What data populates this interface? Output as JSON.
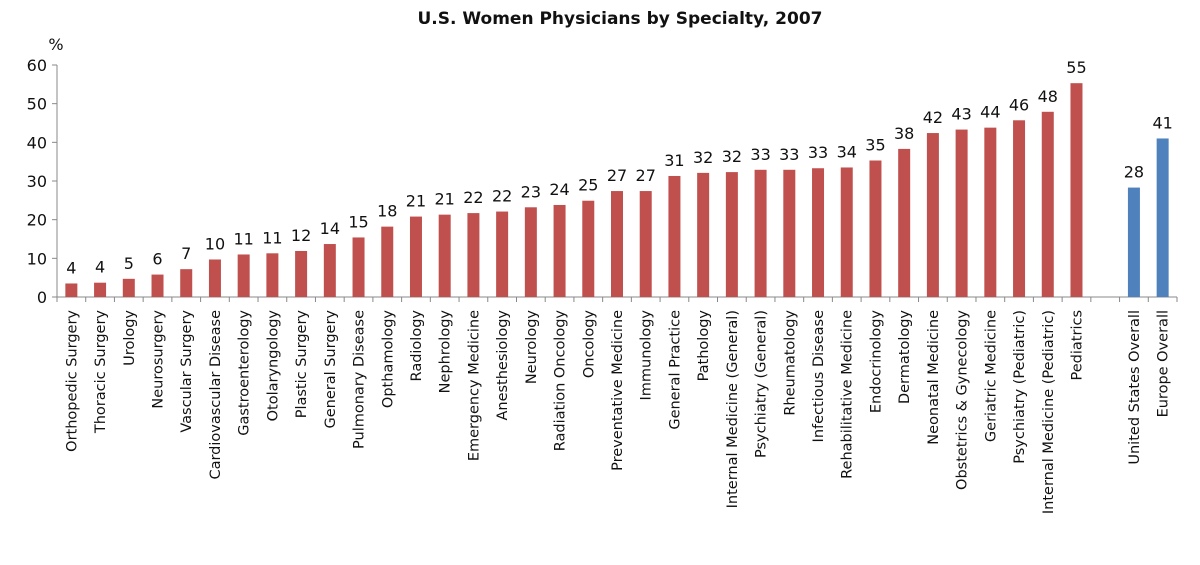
{
  "chart_data": {
    "type": "bar",
    "title": "U.S. Women Physicians by Specialty, 2007",
    "ylabel": "%",
    "xlabel": "",
    "ylim": [
      0,
      60
    ],
    "yticks": [
      0,
      10,
      20,
      30,
      40,
      50,
      60
    ],
    "grid": false,
    "legend": "none",
    "colors": {
      "specialty": "#C0504D",
      "overall": "#4F81BD"
    },
    "categories": [
      "Orthopedic Surgery",
      "Thoracic Surgery",
      "Urology",
      "Neurosurgery",
      "Vascular Surgery",
      "Cardiovascular Disease",
      "Gastroenterology",
      "Otolaryngology",
      "Plastic Surgery",
      "General Surgery",
      "Pulmonary Disease",
      "Opthamology",
      "Radiology",
      "Nephrology",
      "Emergency Medicine",
      "Anesthesiology",
      "Neurology",
      "Radiation Oncology",
      "Oncology",
      "Preventative Medicine",
      "Immunology",
      "General Practice",
      "Pathology",
      "Internal Medicine (General)",
      "Psychiatry (General)",
      "Rheumatology",
      "Infectious Disease",
      "Rehabilitative Medicine",
      "Endocrinology",
      "Dermatology",
      "Neonatal Medicine",
      "Obstetrics & Gynecology",
      "Geriatric Medicine",
      "Psychiatry (Pediatric)",
      "Internal Medicine (Pediatric)",
      "Pediatrics",
      "",
      "United States Overall",
      "Europe Overall"
    ],
    "values": [
      3.5,
      3.7,
      4.7,
      5.8,
      7.2,
      9.7,
      11.0,
      11.3,
      11.9,
      13.7,
      15.4,
      18.2,
      20.8,
      21.3,
      21.7,
      22.1,
      23.2,
      23.8,
      24.9,
      27.4,
      27.4,
      31.3,
      32.1,
      32.3,
      32.9,
      32.9,
      33.3,
      33.5,
      35.3,
      38.3,
      42.4,
      43.3,
      43.8,
      45.7,
      47.9,
      55.3,
      null,
      28.3,
      41.0
    ],
    "data_labels": [
      "4",
      "4",
      "5",
      "6",
      "7",
      "10",
      "11",
      "11",
      "12",
      "14",
      "15",
      "18",
      "21",
      "21",
      "22",
      "22",
      "23",
      "24",
      "25",
      "27",
      "27",
      "31",
      "32",
      "32",
      "33",
      "33",
      "33",
      "34",
      "35",
      "38",
      "42",
      "43",
      "44",
      "46",
      "48",
      "55",
      "",
      "28",
      "41"
    ],
    "series_group": [
      "specialty",
      "specialty",
      "specialty",
      "specialty",
      "specialty",
      "specialty",
      "specialty",
      "specialty",
      "specialty",
      "specialty",
      "specialty",
      "specialty",
      "specialty",
      "specialty",
      "specialty",
      "specialty",
      "specialty",
      "specialty",
      "specialty",
      "specialty",
      "specialty",
      "specialty",
      "specialty",
      "specialty",
      "specialty",
      "specialty",
      "specialty",
      "specialty",
      "specialty",
      "specialty",
      "specialty",
      "specialty",
      "specialty",
      "specialty",
      "specialty",
      "specialty",
      "",
      "overall",
      "overall"
    ]
  }
}
